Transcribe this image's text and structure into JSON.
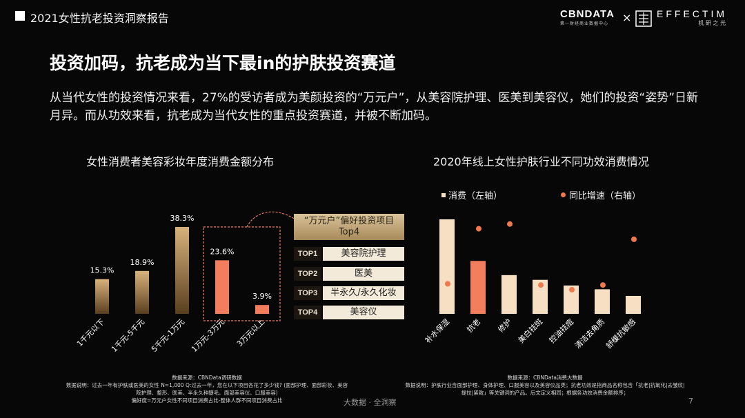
{
  "header": {
    "report_title": "2021女性抗老投资洞察报告",
    "logo_left": "CBNDATA",
    "logo_left_sub": "第一财经商业数据中心",
    "logo_x": "×",
    "logo_right": "EFFECTIM",
    "logo_right_sub": "机 研 之 光"
  },
  "headline": "投资加码，抗老成为当下最in的护肤投资赛道",
  "paragraph": "从当代女性的投资情况来看，27%的受访者成为美颜投资的“万元户”，从美容院护理、医美到美容仪，她们的投资“姿势”日新月异。而从功效来看，抗老成为当代女性的重点投资赛道，并被不断加码。",
  "colors": {
    "gold_top": "#d8b27c",
    "gold_bottom": "#5a3f1f",
    "coral": "#f37e5e",
    "cream": "#f7dfc3",
    "dot": "#f07a4e"
  },
  "top4": {
    "header": "“万元户”偏好投资项目Top4",
    "items": [
      {
        "rank": "TOP1",
        "label": "美容院护理"
      },
      {
        "rank": "TOP2",
        "label": "医美"
      },
      {
        "rank": "TOP3",
        "label": "半永久/永久化妆"
      },
      {
        "rank": "TOP4",
        "label": "美容仪"
      }
    ]
  },
  "chart_data": [
    {
      "type": "bar",
      "title": "女性消费者美容彩妆年度消费金额分布",
      "categories": [
        "1千元以下",
        "1千元-5千元",
        "5千元-1万元",
        "1万元-3万元",
        "3万元以上"
      ],
      "values": [
        15.3,
        18.9,
        38.3,
        23.6,
        3.9
      ],
      "value_labels": [
        "15.3%",
        "18.9%",
        "38.3%",
        "23.6%",
        "3.9%"
      ],
      "highlighted": [
        "1万元-3万元",
        "3万元以上"
      ],
      "ylim": [
        0,
        40
      ],
      "source_title": "数据来源：CBNData调研数据",
      "source_notes": [
        "数据说明：过去一年有护肤或医美的女性 N=1,000 Q:过去一年，您在以下项目各花了多少钱? (面部护理、面部彩妆、美容",
        "院护理、整形、医美、半永久种睫毛、面部美容仪、口服美容)",
        "偏好度=万元户女性不同项目消费占比-整体人群不同项目消费占比"
      ]
    },
    {
      "type": "bar+scatter",
      "title": "2020年线上女性护肤行业不同功效消费情况",
      "legend": [
        "消费（左轴）",
        "同比增速（右轴）"
      ],
      "categories": [
        "补水保湿",
        "抗老",
        "修护",
        "美白祛斑",
        "控油祛痘",
        "清洁去角质",
        "舒缓抗敏感"
      ],
      "bar_values": [
        100,
        56,
        41,
        36,
        30,
        26,
        19
      ],
      "growth_values": [
        45,
        92,
        96,
        44,
        40,
        44,
        83
      ],
      "highlighted": [
        "抗老"
      ],
      "source_title": "数据来源：CBNData消费大数据",
      "source_notes": [
        "数据说明：护肤行业含面部护理、身体护理、口服美容以及美容仪品类；抗老功效是指商品名称包含「抗老|抗氧化|去皱纹|",
        "提拉|紧致」等关键词的产品。后文定义相同；根据各功效消费金额排序；"
      ]
    }
  ],
  "footer": {
    "center": "大数据 · 全洞察",
    "page": "7"
  }
}
